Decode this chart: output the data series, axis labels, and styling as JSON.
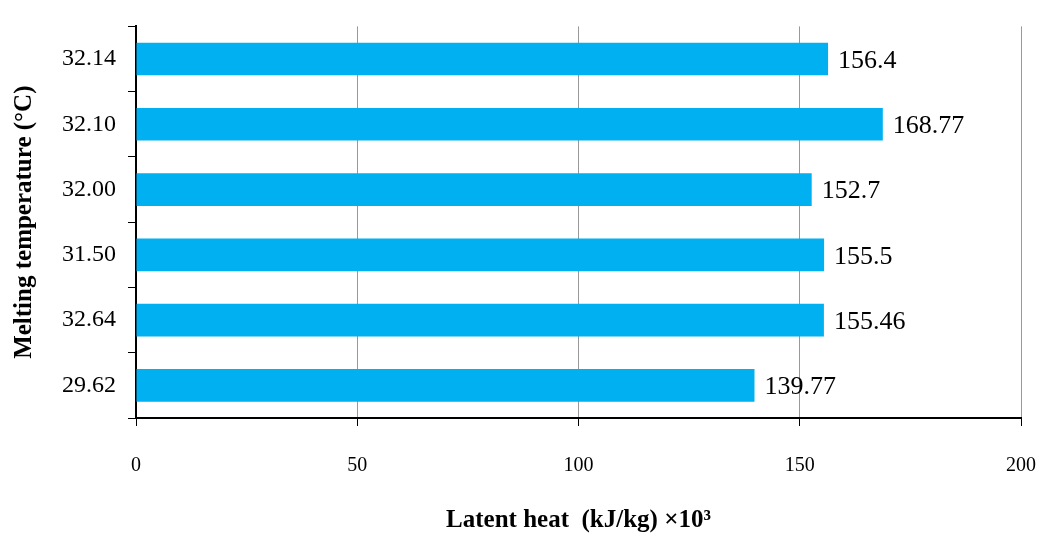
{
  "chart_data": {
    "type": "bar",
    "orientation": "horizontal",
    "xlabel": "Latent heat  (kJ/kg) ×10³",
    "ylabel": "Melting temperature (°C)",
    "categories": [
      "32.14",
      "32.10",
      "32.00",
      "31.50",
      "32.64",
      "29.62"
    ],
    "values": [
      156.4,
      168.77,
      152.7,
      155.5,
      155.46,
      139.77
    ],
    "color": "#00b0f0",
    "xlim": [
      0,
      200
    ],
    "xticks": [
      0,
      50,
      100,
      150,
      200
    ],
    "grid": "x",
    "data_labels": true
  }
}
